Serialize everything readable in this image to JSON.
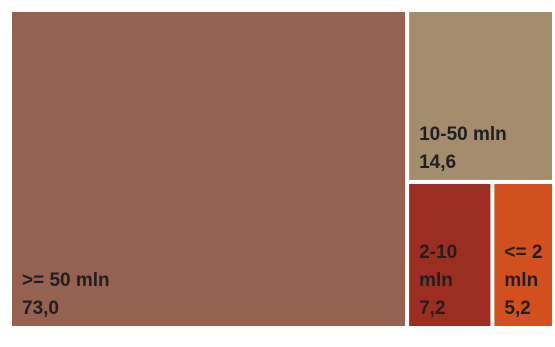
{
  "chart_data": {
    "type": "treemap",
    "title": "",
    "items": [
      {
        "label": ">= 50 mln",
        "label_lines": [
          ">= 50 mln"
        ],
        "value_text": "73,0",
        "value": 73.0,
        "color": "#956151"
      },
      {
        "label": "10-50 mln",
        "label_lines": [
          "10-50 mln"
        ],
        "value_text": "14,6",
        "value": 14.6,
        "color": "#a48d6c"
      },
      {
        "label": "2-10 mln",
        "label_lines": [
          "2-10",
          "mln"
        ],
        "value_text": "7,2",
        "value": 7.2,
        "color": "#9c2d21"
      },
      {
        "label": "<= 2 mln",
        "label_lines": [
          "<= 2",
          "mln"
        ],
        "value_text": "5,2",
        "value": 5.2,
        "color": "#d2501d"
      }
    ]
  }
}
